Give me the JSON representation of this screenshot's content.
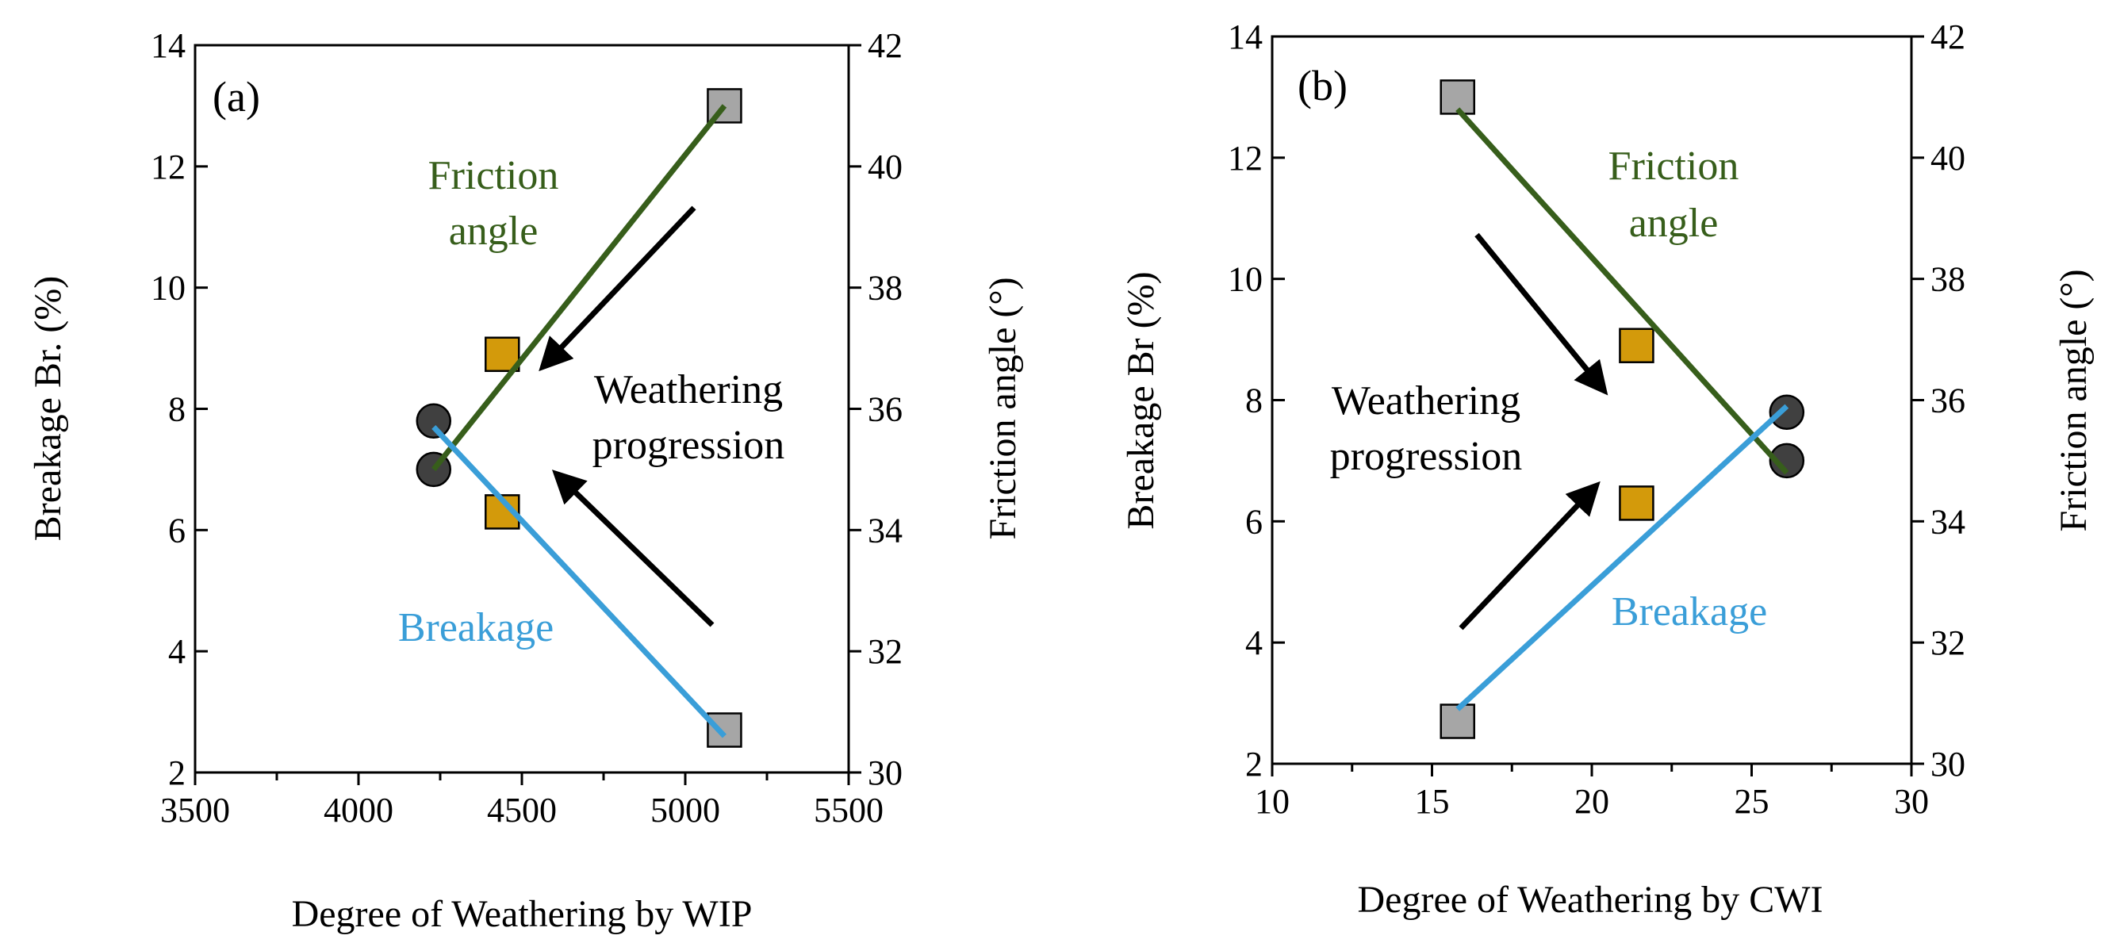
{
  "chart_data": [
    {
      "type": "scatter",
      "panel_label": "(a)",
      "xlabel": "Degree of Weathering by WIP",
      "ylabel_left": "Breakage Br. (%)",
      "ylabel_right": "Friction angle (°)",
      "xlim": [
        3500,
        5500
      ],
      "x_major_ticks": [
        3500,
        4000,
        4500,
        5000,
        5500
      ],
      "x_tick_labels": [
        "3500",
        "4000",
        "4500",
        "5000",
        "5500"
      ],
      "ylim_left": [
        2,
        14
      ],
      "y_left_ticks": [
        2,
        4,
        6,
        8,
        10,
        12,
        14
      ],
      "y_left_tick_labels": [
        "2",
        "4",
        "6",
        "8",
        "10",
        "12",
        "14"
      ],
      "ylim_right": [
        30,
        42
      ],
      "y_right_ticks": [
        30,
        32,
        34,
        36,
        38,
        40,
        42
      ],
      "y_right_tick_labels": [
        "30",
        "32",
        "34",
        "36",
        "38",
        "40",
        "42"
      ],
      "points": [
        {
          "x": 5120,
          "y": 13.0,
          "marker": "square",
          "color": "#a6a6a6"
        },
        {
          "x": 5120,
          "y": 2.7,
          "marker": "square",
          "color": "#a6a6a6"
        },
        {
          "x": 4440,
          "y": 8.9,
          "marker": "square",
          "color": "#d39a0b"
        },
        {
          "x": 4440,
          "y": 6.3,
          "marker": "square",
          "color": "#d39a0b"
        },
        {
          "x": 4230,
          "y": 7.8,
          "marker": "circle",
          "color": "#404040"
        },
        {
          "x": 4230,
          "y": 7.0,
          "marker": "circle",
          "color": "#404040"
        }
      ],
      "series": [
        {
          "name": "Friction angle",
          "color": "#375e1b",
          "x": [
            4230,
            5120
          ],
          "y": [
            7.0,
            13.0
          ]
        },
        {
          "name": "Breakage",
          "color": "#3a9ed8",
          "x": [
            4230,
            5120
          ],
          "y": [
            7.7,
            2.6
          ]
        }
      ],
      "annotations": {
        "friction_label": [
          "Friction",
          "angle"
        ],
        "breakage_label": "Breakage",
        "weathering_label": [
          "Weathering",
          "progression"
        ]
      }
    },
    {
      "type": "scatter",
      "panel_label": "(b)",
      "xlabel": "Degree of Weathering by CWI",
      "ylabel_left": "Breakage Br (%)",
      "ylabel_right": "Friction angle (°)",
      "xlim": [
        10,
        30
      ],
      "x_major_ticks": [
        10,
        15,
        20,
        25,
        30
      ],
      "x_tick_labels": [
        "10",
        "15",
        "20",
        "25",
        "30"
      ],
      "ylim_left": [
        2,
        14
      ],
      "y_left_ticks": [
        2,
        4,
        6,
        8,
        10,
        12,
        14
      ],
      "y_left_tick_labels": [
        "2",
        "4",
        "6",
        "8",
        "10",
        "12",
        "14"
      ],
      "ylim_right": [
        30,
        42
      ],
      "y_right_ticks": [
        30,
        32,
        34,
        36,
        38,
        40,
        42
      ],
      "y_right_tick_labels": [
        "30",
        "32",
        "34",
        "36",
        "38",
        "40",
        "42"
      ],
      "points": [
        {
          "x": 15.8,
          "y": 13.0,
          "marker": "square",
          "color": "#a6a6a6"
        },
        {
          "x": 15.8,
          "y": 2.7,
          "marker": "square",
          "color": "#a6a6a6"
        },
        {
          "x": 21.4,
          "y": 8.9,
          "marker": "square",
          "color": "#d39a0b"
        },
        {
          "x": 21.4,
          "y": 6.3,
          "marker": "square",
          "color": "#d39a0b"
        },
        {
          "x": 26.1,
          "y": 7.8,
          "marker": "circle",
          "color": "#404040"
        },
        {
          "x": 26.1,
          "y": 7.0,
          "marker": "circle",
          "color": "#404040"
        }
      ],
      "series": [
        {
          "name": "Friction angle",
          "color": "#375e1b",
          "x": [
            15.8,
            26.1
          ],
          "y": [
            12.8,
            6.8
          ]
        },
        {
          "name": "Breakage",
          "color": "#3a9ed8",
          "x": [
            15.8,
            26.1
          ],
          "y": [
            2.9,
            7.9
          ]
        }
      ],
      "annotations": {
        "friction_label": [
          "Friction",
          "angle"
        ],
        "breakage_label": "Breakage",
        "weathering_label": [
          "Weathering",
          "progression"
        ]
      }
    }
  ]
}
